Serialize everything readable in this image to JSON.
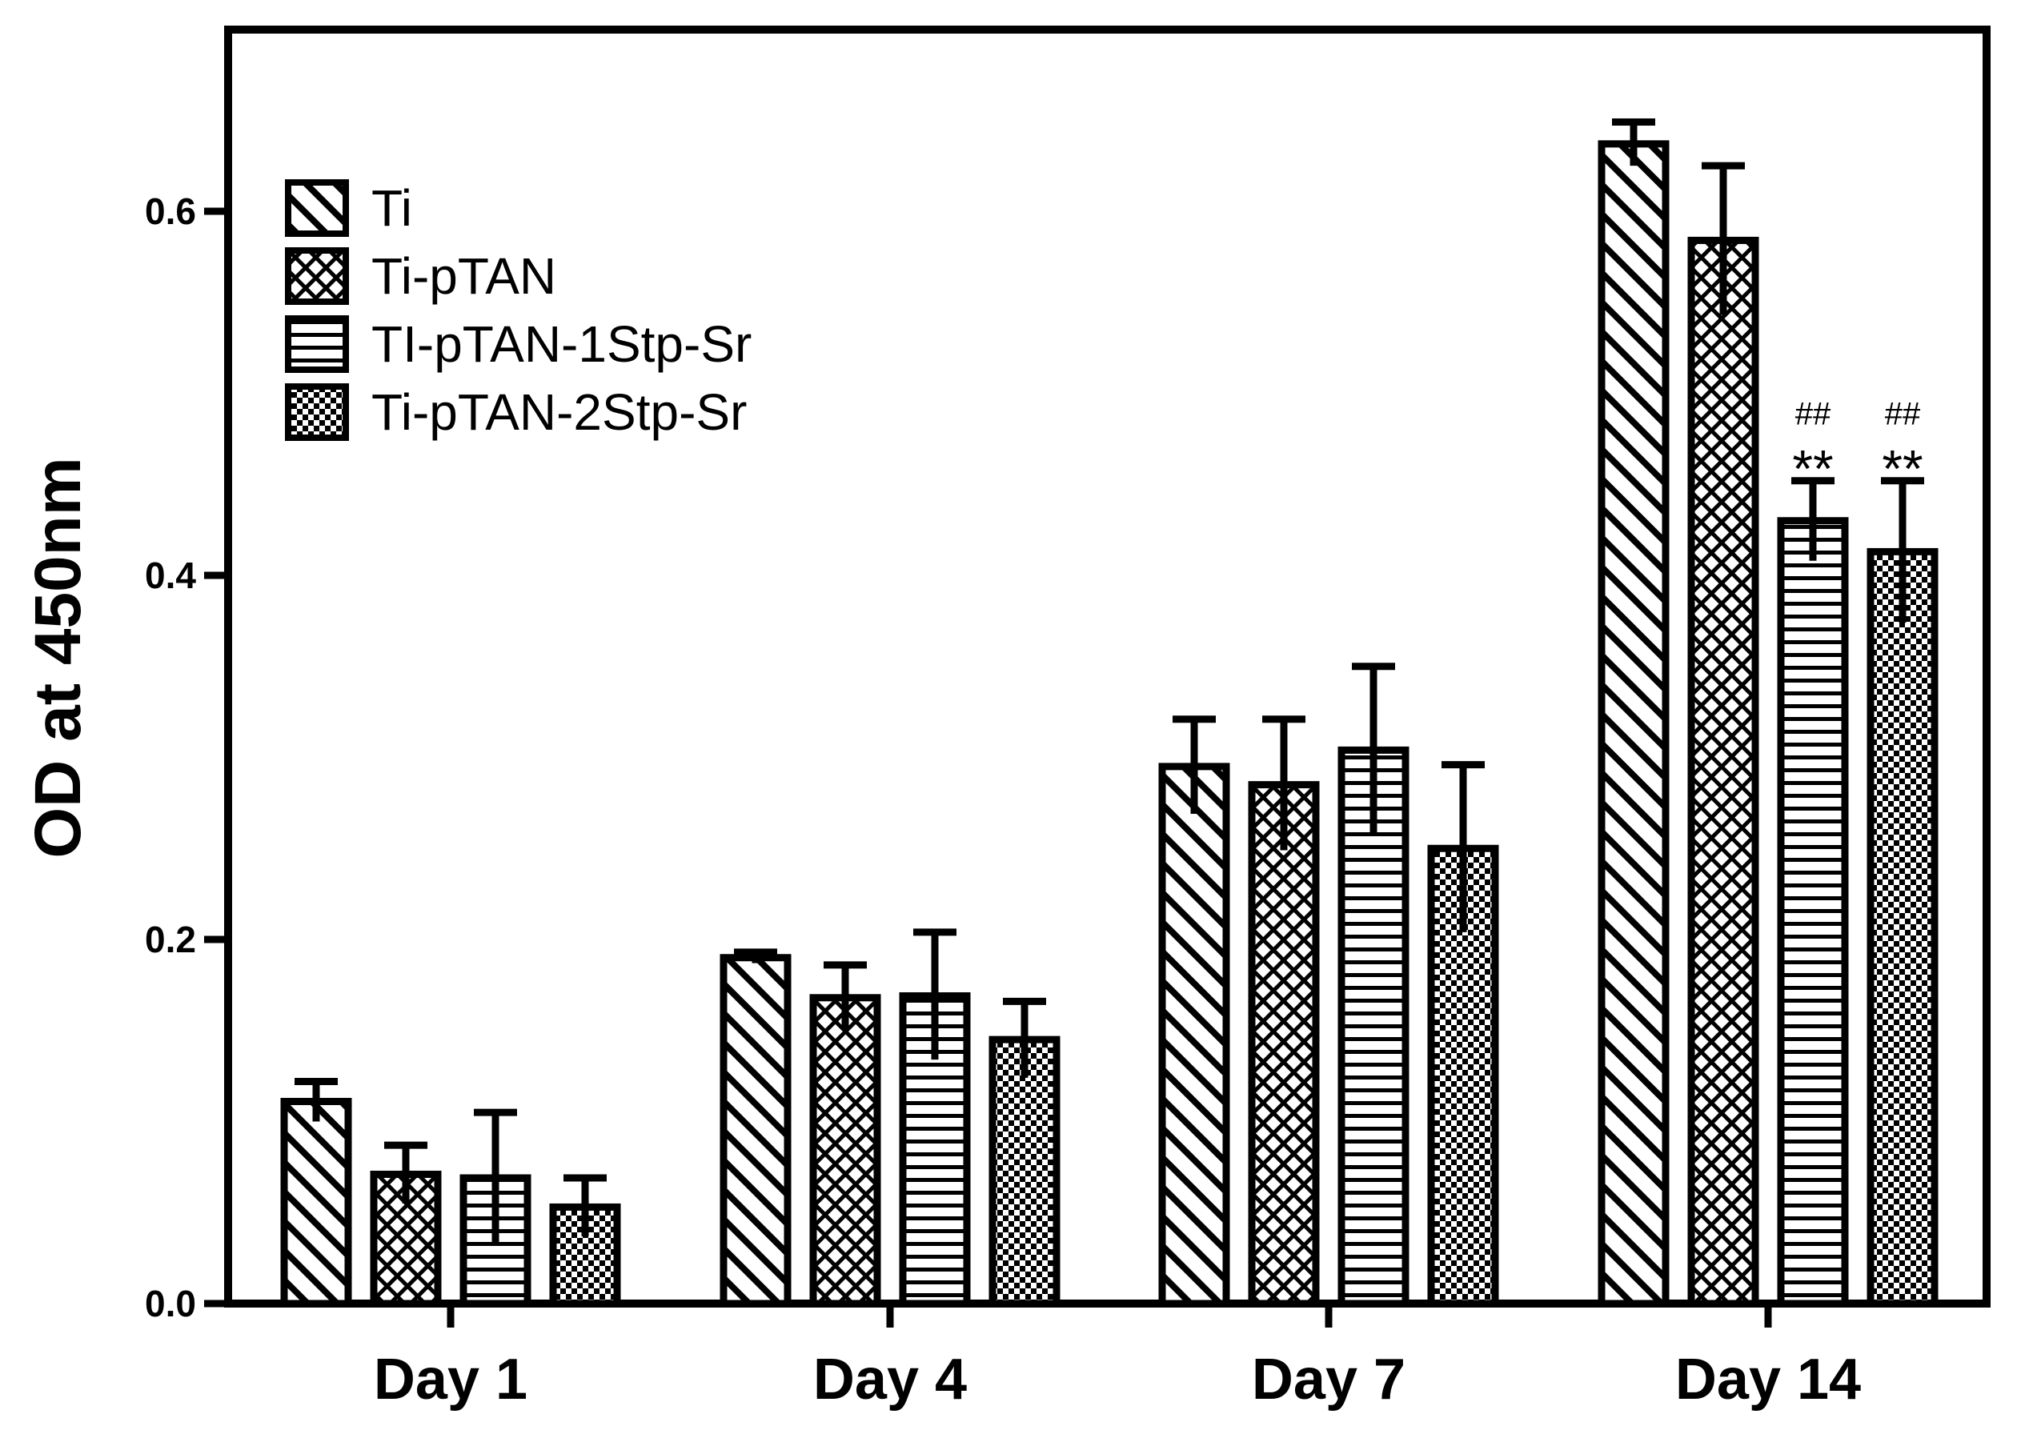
{
  "chart_data": {
    "type": "bar",
    "title": "",
    "xlabel": "",
    "ylabel": "OD at 450nm",
    "ylim": [
      0,
      0.7
    ],
    "yticks": [
      "0.0",
      "0.2",
      "0.4",
      "0.6"
    ],
    "ytick_values": [
      0,
      0.2,
      0.4,
      0.6
    ],
    "categories": [
      "Day 1",
      "Day 4",
      "Day 7",
      "Day 14"
    ],
    "legend_position": "top-left",
    "series": [
      {
        "name": "Ti",
        "pattern": "diagonal-hatch",
        "values": [
          0.111,
          0.19,
          0.295,
          0.637
        ],
        "errors": [
          0.011,
          0.003,
          0.026,
          0.012
        ]
      },
      {
        "name": "Ti-pTAN",
        "pattern": "crosshatch",
        "values": [
          0.071,
          0.168,
          0.285,
          0.584
        ],
        "errors": [
          0.016,
          0.018,
          0.036,
          0.041
        ]
      },
      {
        "name": "TI-pTAN-1Stp-Sr",
        "pattern": "horizontal-lines",
        "values": [
          0.069,
          0.169,
          0.304,
          0.43
        ],
        "errors": [
          0.036,
          0.035,
          0.046,
          0.022
        ]
      },
      {
        "name": "Ti-pTAN-2Stp-Sr",
        "pattern": "checker",
        "values": [
          0.053,
          0.145,
          0.25,
          0.413
        ],
        "errors": [
          0.016,
          0.021,
          0.046,
          0.039
        ]
      }
    ],
    "annotations": [
      {
        "category": "Day 14",
        "series": "TI-pTAN-1Stp-Sr",
        "lines": [
          "##",
          "**"
        ]
      },
      {
        "category": "Day 14",
        "series": "Ti-pTAN-2Stp-Sr",
        "lines": [
          "##",
          "**"
        ]
      }
    ]
  }
}
